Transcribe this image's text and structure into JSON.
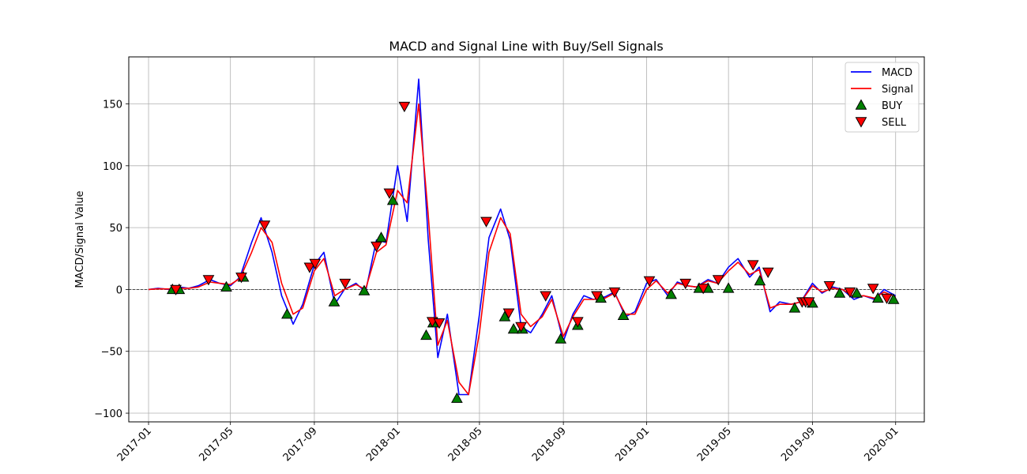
{
  "chart_data": {
    "type": "line",
    "title": "MACD and Signal Line with Buy/Sell Signals",
    "xlabel": "",
    "ylabel": "MACD/Signal Value",
    "x_ticks": [
      "2017-01",
      "2017-05",
      "2017-09",
      "2018-01",
      "2018-05",
      "2018-09",
      "2019-01",
      "2019-05",
      "2019-09",
      "2020-01"
    ],
    "y_ticks": [
      -100,
      -50,
      0,
      50,
      100,
      150
    ],
    "ylim": [
      -107,
      188
    ],
    "xlim": [
      "2016-12-03",
      "2020-02-12"
    ],
    "grid": true,
    "zero_line": true,
    "legend_position": "top-right",
    "colors": {
      "macd": "#0000ff",
      "signal": "#ff0000",
      "buy": "#008000",
      "sell": "#ff0000"
    },
    "x": [
      "2017-01-01",
      "2017-01-15",
      "2017-02-01",
      "2017-02-15",
      "2017-03-01",
      "2017-03-15",
      "2017-04-01",
      "2017-04-15",
      "2017-05-01",
      "2017-05-15",
      "2017-06-01",
      "2017-06-15",
      "2017-07-01",
      "2017-07-15",
      "2017-08-01",
      "2017-08-15",
      "2017-09-01",
      "2017-09-15",
      "2017-10-01",
      "2017-10-15",
      "2017-11-01",
      "2017-11-15",
      "2017-12-01",
      "2017-12-15",
      "2018-01-01",
      "2018-01-15",
      "2018-02-01",
      "2018-02-15",
      "2018-03-01",
      "2018-03-15",
      "2018-04-01",
      "2018-04-15",
      "2018-05-01",
      "2018-05-15",
      "2018-06-01",
      "2018-06-15",
      "2018-07-01",
      "2018-07-15",
      "2018-08-01",
      "2018-08-15",
      "2018-09-01",
      "2018-09-15",
      "2018-10-01",
      "2018-10-15",
      "2018-11-01",
      "2018-11-15",
      "2018-12-01",
      "2018-12-15",
      "2019-01-01",
      "2019-01-15",
      "2019-02-01",
      "2019-02-15",
      "2019-03-01",
      "2019-03-15",
      "2019-04-01",
      "2019-04-15",
      "2019-05-01",
      "2019-05-15",
      "2019-06-01",
      "2019-06-15",
      "2019-07-01",
      "2019-07-15",
      "2019-08-01",
      "2019-08-15",
      "2019-09-01",
      "2019-09-15",
      "2019-10-01",
      "2019-10-15",
      "2019-11-01",
      "2019-11-15",
      "2019-12-01",
      "2019-12-15",
      "2020-01-01"
    ],
    "series": [
      {
        "name": "MACD",
        "values": [
          0,
          1,
          0,
          2,
          1,
          3,
          8,
          5,
          3,
          10,
          38,
          58,
          30,
          -5,
          -28,
          -12,
          20,
          30,
          -12,
          0,
          5,
          -2,
          40,
          38,
          100,
          55,
          170,
          40,
          -55,
          -20,
          -85,
          -85,
          -20,
          42,
          65,
          40,
          -30,
          -35,
          -20,
          -5,
          -42,
          -20,
          -5,
          -8,
          -6,
          -2,
          -22,
          -18,
          5,
          8,
          -5,
          6,
          3,
          2,
          8,
          5,
          18,
          25,
          10,
          18,
          -18,
          -10,
          -12,
          -10,
          5,
          -3,
          2,
          0,
          -8,
          -5,
          -8,
          0,
          -5
        ]
      },
      {
        "name": "Signal",
        "values": [
          0,
          0.5,
          0.4,
          1,
          1,
          2,
          6,
          5,
          4,
          9,
          30,
          50,
          38,
          5,
          -20,
          -15,
          15,
          25,
          -5,
          0,
          4,
          0,
          30,
          36,
          80,
          70,
          150,
          60,
          -45,
          -25,
          -75,
          -85,
          -35,
          30,
          58,
          45,
          -20,
          -30,
          -22,
          -8,
          -38,
          -22,
          -8,
          -8,
          -7,
          -3,
          -20,
          -20,
          0,
          7,
          -3,
          5,
          3,
          2,
          7,
          5,
          15,
          22,
          12,
          16,
          -15,
          -12,
          -12,
          -10,
          3,
          -2,
          1,
          0,
          -6,
          -5,
          -7,
          -2,
          -6
        ]
      }
    ],
    "buy_signals": [
      [
        "2017-02-05",
        0
      ],
      [
        "2017-02-15",
        0
      ],
      [
        "2017-04-25",
        2
      ],
      [
        "2017-05-20",
        10
      ],
      [
        "2017-07-23",
        -20
      ],
      [
        "2017-09-30",
        -10
      ],
      [
        "2017-11-13",
        -1
      ],
      [
        "2017-12-08",
        42
      ],
      [
        "2017-12-25",
        72
      ],
      [
        "2018-02-12",
        -37
      ],
      [
        "2018-02-22",
        -27
      ],
      [
        "2018-03-29",
        -88
      ],
      [
        "2018-06-07",
        -22
      ],
      [
        "2018-06-20",
        -32
      ],
      [
        "2018-07-03",
        -32
      ],
      [
        "2018-08-28",
        -40
      ],
      [
        "2018-09-22",
        -29
      ],
      [
        "2018-10-26",
        -7
      ],
      [
        "2018-11-28",
        -21
      ],
      [
        "2019-02-06",
        -4
      ],
      [
        "2019-03-19",
        1
      ],
      [
        "2019-04-01",
        1
      ],
      [
        "2019-05-01",
        1
      ],
      [
        "2019-06-16",
        7
      ],
      [
        "2019-08-06",
        -15
      ],
      [
        "2019-09-01",
        -11
      ],
      [
        "2019-10-11",
        -3
      ],
      [
        "2019-11-05",
        -3
      ],
      [
        "2019-12-06",
        -7
      ],
      [
        "2019-12-29",
        -8
      ]
    ],
    "sell_signals": [
      [
        "2017-02-10",
        0
      ],
      [
        "2017-03-30",
        8
      ],
      [
        "2017-05-17",
        10
      ],
      [
        "2017-06-20",
        52
      ],
      [
        "2017-08-25",
        18
      ],
      [
        "2017-09-02",
        21
      ],
      [
        "2017-10-16",
        5
      ],
      [
        "2017-12-01",
        35
      ],
      [
        "2017-12-20",
        78
      ],
      [
        "2018-01-11",
        148
      ],
      [
        "2018-02-21",
        -26
      ],
      [
        "2018-03-03",
        -27
      ],
      [
        "2018-05-11",
        55
      ],
      [
        "2018-06-13",
        -19
      ],
      [
        "2018-07-01",
        -30
      ],
      [
        "2018-08-06",
        -5
      ],
      [
        "2018-09-22",
        -26
      ],
      [
        "2018-10-20",
        -5
      ],
      [
        "2018-11-15",
        -2
      ],
      [
        "2019-01-05",
        7
      ],
      [
        "2019-02-27",
        5
      ],
      [
        "2019-03-25",
        1
      ],
      [
        "2019-04-16",
        8
      ],
      [
        "2019-06-06",
        20
      ],
      [
        "2019-06-28",
        14
      ],
      [
        "2019-08-17",
        -10
      ],
      [
        "2019-08-22",
        -10
      ],
      [
        "2019-08-27",
        -10
      ],
      [
        "2019-09-26",
        3
      ],
      [
        "2019-10-26",
        -2
      ],
      [
        "2019-11-29",
        1
      ],
      [
        "2019-12-19",
        -7
      ]
    ]
  },
  "legend": [
    {
      "label": "MACD",
      "kind": "line",
      "color": "#0000ff"
    },
    {
      "label": "Signal",
      "kind": "line",
      "color": "#ff0000"
    },
    {
      "label": "BUY",
      "kind": "triangle-up",
      "color": "#008000"
    },
    {
      "label": "SELL",
      "kind": "triangle-down",
      "color": "#ff0000"
    }
  ]
}
